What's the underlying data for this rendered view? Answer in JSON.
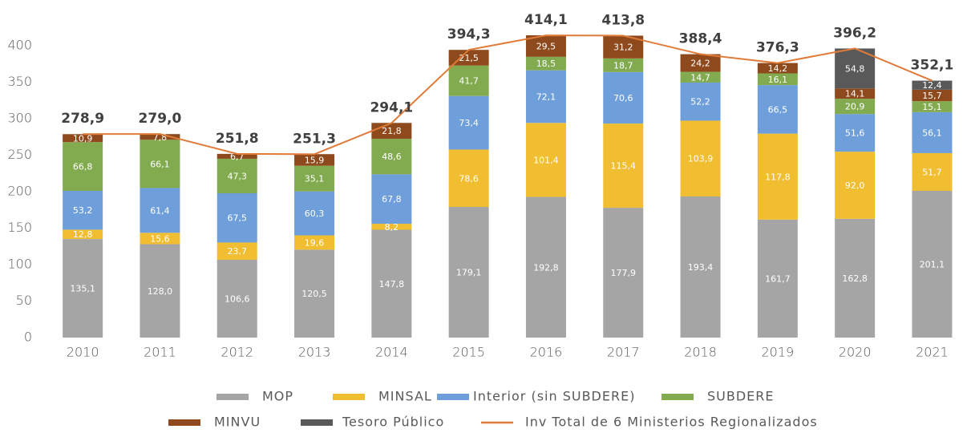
{
  "chart_data": {
    "type": "bar",
    "stacked": true,
    "categories": [
      "2010",
      "2011",
      "2012",
      "2013",
      "2014",
      "2015",
      "2016",
      "2017",
      "2018",
      "2019",
      "2020",
      "2021"
    ],
    "series": [
      {
        "name": "MOP",
        "color": "#a5a5a5",
        "values": [
          135.1,
          128.0,
          106.6,
          120.5,
          147.8,
          179.1,
          192.8,
          177.9,
          193.4,
          161.7,
          162.8,
          201.1
        ],
        "value_labels": [
          "135,1",
          "128,0",
          "106,6",
          "120,5",
          "147,8",
          "179,1",
          "192,8",
          "177,9",
          "193,4",
          "161,7",
          "162,8",
          "201,1"
        ]
      },
      {
        "name": "MINSAL",
        "color": "#f0be30",
        "values": [
          12.8,
          15.6,
          23.7,
          19.6,
          8.2,
          78.6,
          101.4,
          115.4,
          103.9,
          117.8,
          92.0,
          51.7
        ],
        "value_labels": [
          "12,8",
          "15,6",
          "23,7",
          "19,6",
          "8,2",
          "78,6",
          "101,4",
          "115,4",
          "103,9",
          "117,8",
          "92,0",
          "51,7"
        ]
      },
      {
        "name": "Interior (sin SUBDERE)",
        "color": "#6f9fdb",
        "values": [
          53.2,
          61.4,
          67.5,
          60.3,
          67.8,
          73.4,
          72.1,
          70.6,
          52.2,
          66.5,
          51.6,
          56.1
        ],
        "value_labels": [
          "53,2",
          "61,4",
          "67,5",
          "60,3",
          "67,8",
          "73,4",
          "72,1",
          "70,6",
          "52,2",
          "66,5",
          "51,6",
          "56,1"
        ]
      },
      {
        "name": "SUBDERE",
        "color": "#82ab4f",
        "values": [
          66.8,
          66.1,
          47.3,
          35.1,
          48.6,
          41.7,
          18.5,
          18.7,
          14.7,
          16.1,
          20.9,
          15.1
        ],
        "value_labels": [
          "66,8",
          "66,1",
          "47,3",
          "35,1",
          "48,6",
          "41,7",
          "18,5",
          "18,7",
          "14,7",
          "16,1",
          "20,9",
          "15,1"
        ]
      },
      {
        "name": "MINVU",
        "color": "#8e4a1c",
        "values": [
          10.9,
          7.8,
          6.7,
          15.9,
          21.8,
          21.5,
          29.5,
          31.2,
          24.2,
          14.2,
          14.1,
          15.7
        ],
        "value_labels": [
          "10,9",
          "7,8",
          "6,7",
          "15,9",
          "21,8",
          "21,5",
          "29,5",
          "31,2",
          "24,2",
          "14,2",
          "14,1",
          "15,7"
        ]
      },
      {
        "name": "Tesoro Público",
        "color": "#595959",
        "values": [
          null,
          null,
          null,
          null,
          null,
          null,
          null,
          null,
          null,
          null,
          54.8,
          12.4
        ],
        "value_labels": [
          null,
          null,
          null,
          null,
          null,
          null,
          null,
          null,
          null,
          null,
          "54,8",
          "12,4"
        ]
      }
    ],
    "line": {
      "name": "Inv Total de 6 Ministerios Regionalizados",
      "color": "#e07b39",
      "values": [
        278.9,
        279.0,
        251.8,
        251.3,
        294.1,
        394.3,
        414.1,
        413.8,
        388.4,
        376.3,
        396.2,
        352.1
      ],
      "value_labels": [
        "278,9",
        "279,0",
        "251,8",
        "251,3",
        "294,1",
        "394,3",
        "414,1",
        "413,8",
        "388,4",
        "376,3",
        "396,2",
        "352,1"
      ]
    },
    "ylim": [
      0,
      450
    ],
    "yticks": [
      0,
      50,
      100,
      150,
      200,
      250,
      300,
      350,
      400
    ]
  }
}
